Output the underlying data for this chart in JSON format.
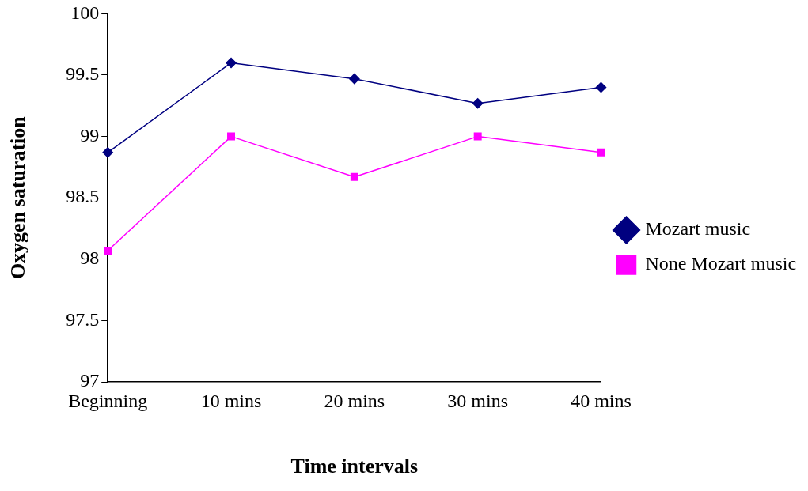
{
  "chart_data": {
    "type": "line",
    "xlabel": "Time intervals",
    "ylabel": "Oxygen saturation",
    "categories": [
      "Beginning",
      "10 mins",
      "20 mins",
      "30 mins",
      "40 mins"
    ],
    "series": [
      {
        "name": "Mozart music",
        "color": "#000080",
        "marker": "diamond",
        "values": [
          98.87,
          99.6,
          99.47,
          99.27,
          99.4
        ]
      },
      {
        "name": "None Mozart music",
        "color": "#ff00ff",
        "marker": "square",
        "values": [
          98.07,
          99.0,
          98.67,
          99.0,
          98.87
        ]
      }
    ],
    "ylim": [
      97,
      100
    ],
    "yticks": [
      97,
      97.5,
      98,
      98.5,
      99,
      99.5,
      100
    ],
    "grid": false,
    "legend": "right",
    "line_style": "solid"
  }
}
